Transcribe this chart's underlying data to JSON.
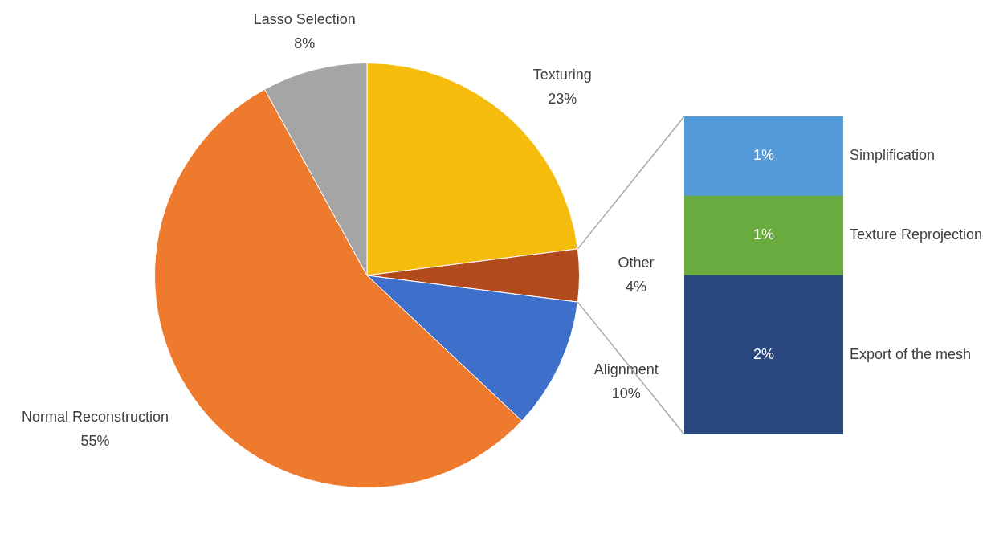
{
  "chart_data": [
    {
      "type": "pie",
      "categories": [
        "Texturing",
        "Other",
        "Alignment",
        "Normal Reconstruction",
        "Lasso Selection"
      ],
      "values": [
        23,
        4,
        10,
        55,
        8
      ],
      "colors": [
        "#f5bc0c",
        "#b24a1c",
        "#3e6fca",
        "#ee7a2e",
        "#a5a5a5"
      ],
      "value_labels": [
        "23%",
        "4%",
        "10%",
        "55%",
        "8%"
      ],
      "legend": false
    },
    {
      "type": "bar",
      "stacked": true,
      "categories": [
        null
      ],
      "series": [
        {
          "name": "Export of the mesh",
          "color": "#2a4780",
          "values": [
            2
          ],
          "value_labels": [
            "2%"
          ]
        },
        {
          "name": "Texture Reprojection",
          "color": "#6aab40",
          "values": [
            1
          ],
          "value_labels": [
            "1%"
          ]
        },
        {
          "name": "Simplification",
          "color": "#559ad9",
          "values": [
            1
          ],
          "value_labels": [
            "1%"
          ]
        }
      ],
      "legend": false
    }
  ]
}
